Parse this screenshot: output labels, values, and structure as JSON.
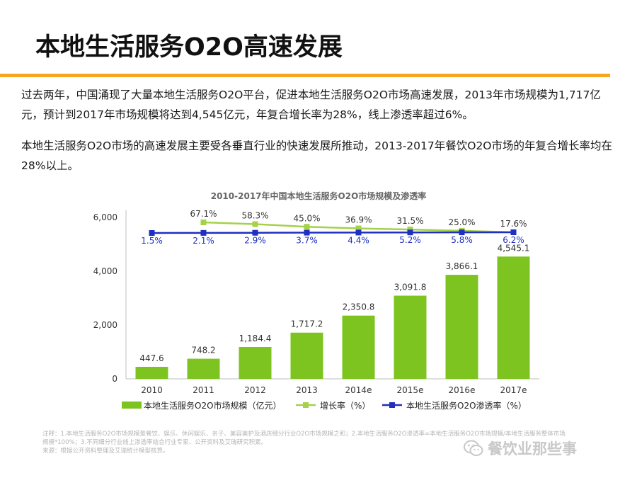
{
  "slide": {
    "title": "本地生活服务O2O高速发展",
    "paragraphs": [
      "过去两年，中国涌现了大量本地生活服务O2O平台，促进本地生活服务O2O市场高速发展，2013年市场规模为1,717亿元，预计到2017年市场规模将达到4,545亿元，年复合增长率为28%，线上渗透率超过6%。",
      "本地生活服务O2O市场的高速发展主要受各垂直行业的快速发展所推动，2013-2017年餐饮O2O市场的年复合增长率均在28%以上。"
    ]
  },
  "chart_data": {
    "type": "bar",
    "title": "2010-2017年中国本地生活服务O2O市场规模及渗透率",
    "categories": [
      "2010",
      "2011",
      "2012",
      "2013",
      "2014e",
      "2015e",
      "2016e",
      "2017e"
    ],
    "ylim": [
      0,
      6000
    ],
    "yticks": [
      "0",
      "2,000",
      "4,000",
      "6,000"
    ],
    "ytick_values": [
      0,
      2000,
      4000,
      6000
    ],
    "series": [
      {
        "name": "本地生活服务O2O市场规模（亿元）",
        "kind": "bar",
        "color": "#7dc420",
        "values": [
          447.6,
          748.2,
          1184.4,
          1717.2,
          2350.8,
          3091.8,
          3866.1,
          4545.1
        ],
        "labels": [
          "447.6",
          "748.2",
          "1,184.4",
          "1,717.2",
          "2,350.8",
          "3,091.8",
          "3,866.1",
          "4,545.1"
        ]
      },
      {
        "name": "增长率（%）",
        "kind": "line",
        "color": "#a6d14a",
        "values": [
          null,
          67.1,
          58.3,
          45.0,
          36.9,
          31.5,
          25.0,
          17.6
        ],
        "labels": [
          "",
          "67.1%",
          "58.3%",
          "45.0%",
          "36.9%",
          "31.5%",
          "25.0%",
          "17.6%"
        ]
      },
      {
        "name": "本地生活服务O2O渗透率（%）",
        "kind": "line",
        "color": "#1f2fbf",
        "values": [
          1.5,
          2.1,
          2.9,
          3.7,
          4.4,
          5.2,
          5.8,
          6.2
        ],
        "labels": [
          "1.5%",
          "2.1%",
          "2.9%",
          "3.7%",
          "4.4%",
          "5.2%",
          "5.8%",
          "6.2%"
        ]
      }
    ]
  },
  "notes": [
    "注释：1.本地生活服务O2O市场规模是餐饮、娱乐、休闲娱乐、亲子、美容美护及酒店细分行业O2O市场规模之和；2.本地生活服务O2O渗透率=本地生活服务O2O市场规模/本地生活服务整体市场规模*100%；3.不同细分行业线上渗透率结合行业专家、公开资料及艾瑞研究积累。",
    "来源：根据公开资料整理及艾瑞统计模型核算。"
  ],
  "watermark": {
    "text": "餐饮业那些事",
    "icon": "wechat-icon"
  },
  "colors": {
    "accent": "#f5a623",
    "bar": "#7dc420",
    "growth_line": "#a6d14a",
    "penetration_line": "#1f2fbf"
  }
}
